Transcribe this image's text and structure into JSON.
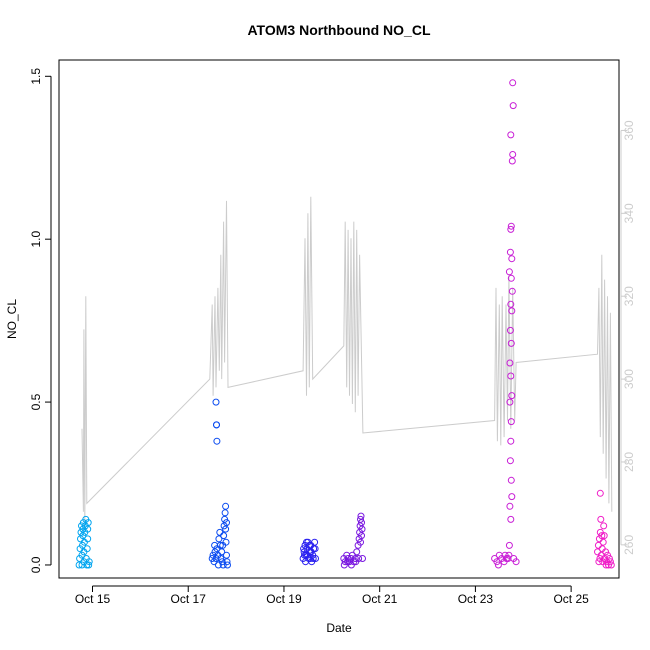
{
  "chart_data": {
    "type": "scatter",
    "title": "ATOM3 Northbound NO_CL",
    "xlabel": "Date",
    "ylabel": "NO_CL",
    "y_ticks": [
      "0.0",
      "0.5",
      "1.0",
      "1.5"
    ],
    "y_tick_values": [
      0,
      0.5,
      1.0,
      1.5
    ],
    "ylim": [
      -0.04,
      1.55
    ],
    "y2_ticks": [
      "260",
      "280",
      "300",
      "320",
      "340",
      "360"
    ],
    "y2_tick_values": [
      260,
      280,
      300,
      320,
      340,
      360
    ],
    "y2lim": [
      252,
      377
    ],
    "x_ticks": [
      "Oct 15",
      "Oct 17",
      "Oct 19",
      "Oct 21",
      "Oct 23",
      "Oct 25"
    ],
    "x_tick_values": [
      15,
      17,
      19,
      21,
      23,
      25
    ],
    "xlim": [
      14.3,
      26.0
    ],
    "grid": false,
    "line_series": {
      "name": "",
      "axis": "right",
      "color": "#cccccc",
      "points": [
        [
          14.78,
          288
        ],
        [
          14.81,
          268
        ],
        [
          14.82,
          312
        ],
        [
          14.84,
          264
        ],
        [
          14.86,
          320
        ],
        [
          14.88,
          270
        ],
        [
          17.45,
          300
        ],
        [
          17.5,
          318
        ],
        [
          17.52,
          296
        ],
        [
          17.56,
          320
        ],
        [
          17.58,
          298
        ],
        [
          17.62,
          322
        ],
        [
          17.65,
          302
        ],
        [
          17.68,
          330
        ],
        [
          17.7,
          300
        ],
        [
          17.74,
          338
        ],
        [
          17.76,
          304
        ],
        [
          17.8,
          343
        ],
        [
          17.83,
          298
        ],
        [
          19.4,
          302
        ],
        [
          19.44,
          334
        ],
        [
          19.47,
          296
        ],
        [
          19.5,
          340
        ],
        [
          19.53,
          298
        ],
        [
          19.56,
          344
        ],
        [
          19.6,
          300
        ],
        [
          20.25,
          308
        ],
        [
          20.28,
          338
        ],
        [
          20.31,
          298
        ],
        [
          20.34,
          336
        ],
        [
          20.37,
          296
        ],
        [
          20.4,
          334
        ],
        [
          20.43,
          294
        ],
        [
          20.46,
          338
        ],
        [
          20.49,
          292
        ],
        [
          20.52,
          336
        ],
        [
          20.55,
          296
        ],
        [
          20.58,
          330
        ],
        [
          20.65,
          287
        ],
        [
          23.4,
          290
        ],
        [
          23.43,
          322
        ],
        [
          23.46,
          285
        ],
        [
          23.5,
          318
        ],
        [
          23.53,
          284
        ],
        [
          23.56,
          320
        ],
        [
          23.6,
          286
        ],
        [
          23.64,
          318
        ],
        [
          23.67,
          290
        ],
        [
          23.7,
          325
        ],
        [
          23.74,
          288
        ],
        [
          23.78,
          322
        ],
        [
          23.82,
          290
        ],
        [
          23.85,
          304
        ],
        [
          25.55,
          306
        ],
        [
          25.58,
          322
        ],
        [
          25.61,
          286
        ],
        [
          25.64,
          330
        ],
        [
          25.67,
          282
        ],
        [
          25.7,
          324
        ],
        [
          25.73,
          276
        ],
        [
          25.76,
          320
        ],
        [
          25.79,
          270
        ],
        [
          25.82,
          316
        ],
        [
          25.85,
          268
        ]
      ]
    },
    "series": [
      {
        "name": "",
        "color": "#00a5f0",
        "points": [
          [
            14.72,
            0.0
          ],
          [
            14.73,
            0.02
          ],
          [
            14.74,
            0.05
          ],
          [
            14.75,
            0.08
          ],
          [
            14.76,
            0.1
          ],
          [
            14.77,
            0.12
          ],
          [
            14.78,
            0.0
          ],
          [
            14.78,
            0.03
          ],
          [
            14.79,
            0.06
          ],
          [
            14.8,
            0.09
          ],
          [
            14.8,
            0.11
          ],
          [
            14.81,
            0.13
          ],
          [
            14.82,
            0.01
          ],
          [
            14.82,
            0.04
          ],
          [
            14.83,
            0.07
          ],
          [
            14.84,
            0.1
          ],
          [
            14.85,
            0.12
          ],
          [
            14.86,
            0.14
          ],
          [
            14.87,
            0.02
          ],
          [
            14.88,
            0.0
          ],
          [
            14.89,
            0.05
          ],
          [
            14.9,
            0.08
          ],
          [
            14.9,
            0.11
          ],
          [
            14.91,
            0.13
          ],
          [
            14.92,
            0.0
          ],
          [
            14.93,
            0.01
          ]
        ]
      },
      {
        "name": "",
        "color": "#0a4bf0",
        "points": [
          [
            17.58,
            0.5
          ],
          [
            17.59,
            0.43
          ],
          [
            17.6,
            0.38
          ],
          [
            17.59,
            0.43
          ],
          [
            17.5,
            0.02
          ],
          [
            17.52,
            0.03
          ],
          [
            17.54,
            0.01
          ],
          [
            17.56,
            0.04
          ],
          [
            17.58,
            0.02
          ],
          [
            17.6,
            0.05
          ],
          [
            17.62,
            0.03
          ],
          [
            17.64,
            0.08
          ],
          [
            17.66,
            0.1
          ],
          [
            17.68,
            0.02
          ],
          [
            17.7,
            0.04
          ],
          [
            17.72,
            0.06
          ],
          [
            17.74,
            0.09
          ],
          [
            17.75,
            0.12
          ],
          [
            17.76,
            0.14
          ],
          [
            17.77,
            0.16
          ],
          [
            17.78,
            0.18
          ],
          [
            17.78,
            0.11
          ],
          [
            17.79,
            0.07
          ],
          [
            17.8,
            0.03
          ],
          [
            17.8,
            0.13
          ],
          [
            17.81,
            0.01
          ],
          [
            17.82,
            0.0
          ],
          [
            17.63,
            0.0
          ],
          [
            17.67,
            0.06
          ],
          [
            17.71,
            0.01
          ],
          [
            17.73,
            0.0
          ],
          [
            17.55,
            0.06
          ]
        ]
      },
      {
        "name": "",
        "color": "#2a20f0",
        "points": [
          [
            19.4,
            0.02
          ],
          [
            19.42,
            0.04
          ],
          [
            19.44,
            0.06
          ],
          [
            19.46,
            0.03
          ],
          [
            19.48,
            0.05
          ],
          [
            19.5,
            0.07
          ],
          [
            19.52,
            0.02
          ],
          [
            19.54,
            0.04
          ],
          [
            19.56,
            0.06
          ],
          [
            19.58,
            0.01
          ],
          [
            19.6,
            0.03
          ],
          [
            19.62,
            0.05
          ],
          [
            19.64,
            0.07
          ],
          [
            19.66,
            0.02
          ],
          [
            19.41,
            0.05
          ],
          [
            19.45,
            0.01
          ],
          [
            19.49,
            0.03
          ],
          [
            19.53,
            0.06
          ],
          [
            19.57,
            0.04
          ],
          [
            19.61,
            0.02
          ],
          [
            19.65,
            0.05
          ],
          [
            19.43,
            0.03
          ],
          [
            19.47,
            0.07
          ],
          [
            19.55,
            0.02
          ]
        ]
      },
      {
        "name": "",
        "color": "#7a18e0",
        "points": [
          [
            20.25,
            0.02
          ],
          [
            20.28,
            0.01
          ],
          [
            20.31,
            0.03
          ],
          [
            20.34,
            0.02
          ],
          [
            20.37,
            0.01
          ],
          [
            20.4,
            0.02
          ],
          [
            20.43,
            0.03
          ],
          [
            20.46,
            0.01
          ],
          [
            20.49,
            0.02
          ],
          [
            20.52,
            0.04
          ],
          [
            20.55,
            0.06
          ],
          [
            20.57,
            0.08
          ],
          [
            20.58,
            0.1
          ],
          [
            20.59,
            0.12
          ],
          [
            20.6,
            0.14
          ],
          [
            20.61,
            0.15
          ],
          [
            20.62,
            0.13
          ],
          [
            20.63,
            0.11
          ],
          [
            20.6,
            0.07
          ],
          [
            20.62,
            0.09
          ],
          [
            20.64,
            0.02
          ],
          [
            20.26,
            0.0
          ],
          [
            20.33,
            0.01
          ],
          [
            20.41,
            0.0
          ],
          [
            20.5,
            0.01
          ],
          [
            20.56,
            0.02
          ]
        ]
      },
      {
        "name": "",
        "color": "#c81ed6",
        "points": [
          [
            23.78,
            1.48
          ],
          [
            23.79,
            1.41
          ],
          [
            23.74,
            1.32
          ],
          [
            23.78,
            1.26
          ],
          [
            23.77,
            1.24
          ],
          [
            23.75,
            1.04
          ],
          [
            23.74,
            1.03
          ],
          [
            23.73,
            0.96
          ],
          [
            23.76,
            0.94
          ],
          [
            23.71,
            0.9
          ],
          [
            23.75,
            0.88
          ],
          [
            23.77,
            0.84
          ],
          [
            23.74,
            0.8
          ],
          [
            23.76,
            0.78
          ],
          [
            23.73,
            0.72
          ],
          [
            23.75,
            0.68
          ],
          [
            23.72,
            0.62
          ],
          [
            23.74,
            0.58
          ],
          [
            23.76,
            0.52
          ],
          [
            23.72,
            0.5
          ],
          [
            23.75,
            0.44
          ],
          [
            23.74,
            0.38
          ],
          [
            23.73,
            0.32
          ],
          [
            23.75,
            0.26
          ],
          [
            23.76,
            0.21
          ],
          [
            23.72,
            0.18
          ],
          [
            23.74,
            0.14
          ],
          [
            23.71,
            0.06
          ],
          [
            23.4,
            0.02
          ],
          [
            23.45,
            0.01
          ],
          [
            23.5,
            0.03
          ],
          [
            23.55,
            0.02
          ],
          [
            23.6,
            0.01
          ],
          [
            23.65,
            0.02
          ],
          [
            23.7,
            0.03
          ],
          [
            23.8,
            0.02
          ],
          [
            23.85,
            0.01
          ],
          [
            23.62,
            0.03
          ],
          [
            23.68,
            0.02
          ],
          [
            23.48,
            0.0
          ]
        ]
      },
      {
        "name": "",
        "color": "#f01ec8",
        "points": [
          [
            25.61,
            0.22
          ],
          [
            25.62,
            0.14
          ],
          [
            25.55,
            0.04
          ],
          [
            25.57,
            0.06
          ],
          [
            25.59,
            0.08
          ],
          [
            25.61,
            0.1
          ],
          [
            25.63,
            0.03
          ],
          [
            25.65,
            0.05
          ],
          [
            25.67,
            0.07
          ],
          [
            25.69,
            0.09
          ],
          [
            25.7,
            0.02
          ],
          [
            25.72,
            0.04
          ],
          [
            25.74,
            0.01
          ],
          [
            25.76,
            0.03
          ],
          [
            25.78,
            0.0
          ],
          [
            25.8,
            0.02
          ],
          [
            25.82,
            0.01
          ],
          [
            25.84,
            0.0
          ],
          [
            25.6,
            0.02
          ],
          [
            25.66,
            0.01
          ],
          [
            25.73,
            0.0
          ],
          [
            25.58,
            0.01
          ],
          [
            25.64,
            0.09
          ],
          [
            25.68,
            0.12
          ]
        ]
      }
    ]
  }
}
